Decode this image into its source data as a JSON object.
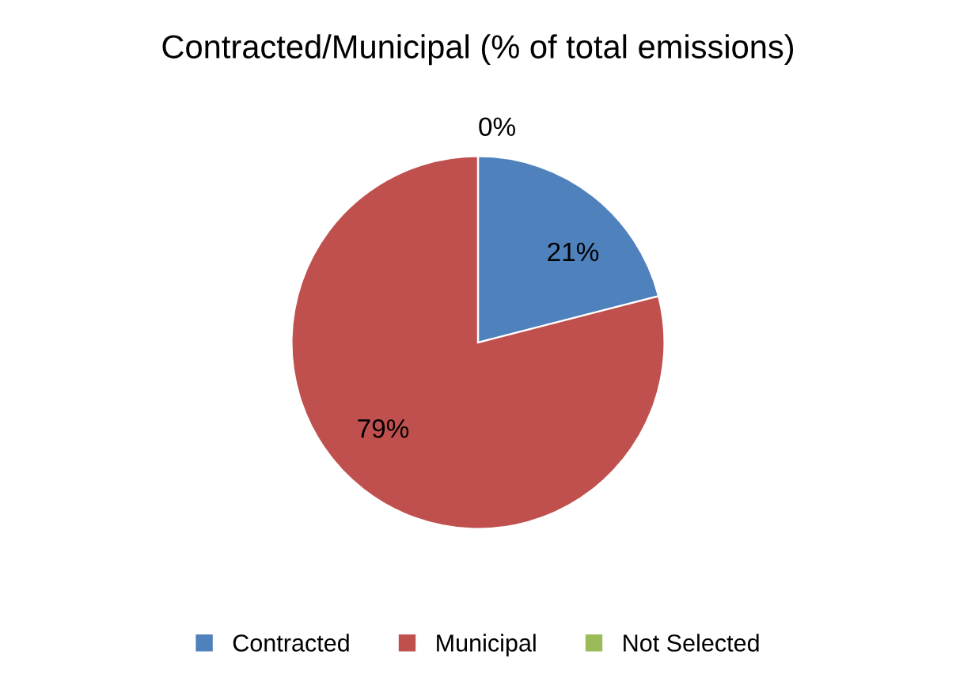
{
  "chart_data": {
    "type": "pie",
    "title": "Contracted/Municipal (% of total emissions)",
    "categories": [
      "Contracted",
      "Municipal",
      "Not Selected"
    ],
    "values": [
      21,
      79,
      0
    ],
    "value_labels": [
      "21%",
      "79%",
      "0%"
    ],
    "colors": [
      "#4f81bd",
      "#c0504d",
      "#9bbb59"
    ],
    "legend": "bottom"
  }
}
